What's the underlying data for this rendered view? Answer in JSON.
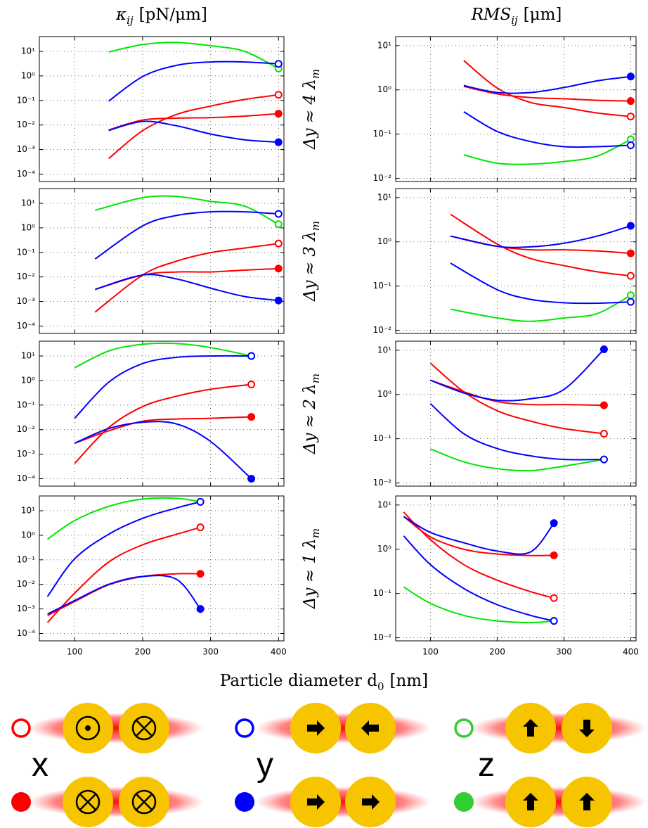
{
  "column_titles": [
    {
      "symbol": "κ",
      "subscript": "ij",
      "unit": "[pN/μm]"
    },
    {
      "symbol": "RMS",
      "subscript": "ij",
      "unit": "[μm]"
    }
  ],
  "row_labels": [
    {
      "text": "Δy ≈ 4 λ",
      "subscript": "m"
    },
    {
      "text": "Δy ≈ 3 λ",
      "subscript": "m"
    },
    {
      "text": "Δy ≈ 2 λ",
      "subscript": "m"
    },
    {
      "text": "Δy ≈ 1 λ",
      "subscript": "m"
    }
  ],
  "xlabel": {
    "text": "Particle diameter d",
    "subscript": "0",
    "unit": "[nm]"
  },
  "chart_data": [
    {
      "type": "line",
      "log_y": true,
      "grid": true,
      "x": [
        150,
        200,
        250,
        300,
        350,
        400
      ],
      "xlim": [
        48,
        408
      ],
      "xticks": [
        100,
        200,
        300,
        400
      ],
      "ylim": [
        5e-05,
        40
      ],
      "yticks": [
        {
          "value": 0.0001,
          "label": "10⁻⁴"
        },
        {
          "value": 0.001,
          "label": "10⁻³"
        },
        {
          "value": 0.01,
          "label": "10⁻²"
        },
        {
          "value": 0.1,
          "label": "10⁻¹"
        },
        {
          "value": 1,
          "label": "10⁰"
        },
        {
          "value": 10,
          "label": "10¹"
        }
      ],
      "series": [
        {
          "color": "#00e600",
          "marker": "open",
          "values": [
            9.4,
            19,
            23,
            17,
            10,
            2.0
          ]
        },
        {
          "color": "#ff0000",
          "marker": "open",
          "values": [
            0.00043,
            0.0059,
            0.027,
            0.059,
            0.11,
            0.17
          ]
        },
        {
          "color": "#ff0000",
          "marker": "filled",
          "values": [
            0.0063,
            0.016,
            0.019,
            0.02,
            0.023,
            0.029
          ]
        },
        {
          "color": "#0000ff",
          "marker": "open",
          "values": [
            0.094,
            0.94,
            2.7,
            3.7,
            3.7,
            3.1
          ]
        },
        {
          "color": "#0000ff",
          "marker": "filled",
          "values": [
            0.006,
            0.014,
            0.0093,
            0.0043,
            0.0025,
            0.002
          ]
        }
      ]
    },
    {
      "type": "line",
      "log_y": true,
      "grid": true,
      "x": [
        150,
        200,
        250,
        300,
        350,
        400
      ],
      "xlim": [
        48,
        408
      ],
      "xticks": [
        100,
        200,
        300,
        400
      ],
      "ylim": [
        0.0085,
        16
      ],
      "yticks": [
        {
          "value": 0.01,
          "label": "10⁻²"
        },
        {
          "value": 0.1,
          "label": "10⁻¹"
        },
        {
          "value": 1,
          "label": "10⁰"
        },
        {
          "value": 10,
          "label": "10¹"
        }
      ],
      "series": [
        {
          "color": "#00e600",
          "marker": "open",
          "values": [
            0.034,
            0.022,
            0.021,
            0.024,
            0.032,
            0.076
          ]
        },
        {
          "color": "#ff0000",
          "marker": "open",
          "values": [
            4.6,
            1.1,
            0.52,
            0.4,
            0.3,
            0.25
          ]
        },
        {
          "color": "#ff0000",
          "marker": "filled",
          "values": [
            1.2,
            0.81,
            0.67,
            0.63,
            0.58,
            0.56
          ]
        },
        {
          "color": "#0000ff",
          "marker": "open",
          "values": [
            0.32,
            0.115,
            0.068,
            0.052,
            0.052,
            0.056
          ]
        },
        {
          "color": "#0000ff",
          "marker": "filled",
          "values": [
            1.25,
            0.87,
            0.87,
            1.13,
            1.6,
            2.0
          ]
        }
      ]
    },
    {
      "type": "line",
      "log_y": true,
      "grid": true,
      "x": [
        130,
        200,
        250,
        300,
        350,
        400
      ],
      "xlim": [
        48,
        408
      ],
      "xticks": [
        100,
        200,
        300,
        400
      ],
      "ylim": [
        5e-05,
        40
      ],
      "yticks": [
        {
          "value": 0.0001,
          "label": "10⁻⁴"
        },
        {
          "value": 0.001,
          "label": "10⁻³"
        },
        {
          "value": 0.01,
          "label": "10⁻²"
        },
        {
          "value": 0.1,
          "label": "10⁻¹"
        },
        {
          "value": 1,
          "label": "10⁰"
        },
        {
          "value": 10,
          "label": "10¹"
        }
      ],
      "series": [
        {
          "color": "#00e600",
          "marker": "open",
          "values": [
            5.2,
            17,
            19,
            12,
            7.7,
            1.4
          ]
        },
        {
          "color": "#ff0000",
          "marker": "open",
          "values": [
            0.00037,
            0.012,
            0.044,
            0.098,
            0.15,
            0.23
          ]
        },
        {
          "color": "#ff0000",
          "marker": "filled",
          "values": [
            0.0031,
            0.012,
            0.016,
            0.016,
            0.019,
            0.022
          ]
        },
        {
          "color": "#0000ff",
          "marker": "open",
          "values": [
            0.054,
            1.2,
            3.2,
            4.5,
            4.5,
            3.7
          ]
        },
        {
          "color": "#0000ff",
          "marker": "filled",
          "values": [
            0.0031,
            0.012,
            0.0083,
            0.0035,
            0.0016,
            0.0011
          ]
        }
      ]
    },
    {
      "type": "line",
      "log_y": true,
      "grid": true,
      "x": [
        130,
        200,
        250,
        300,
        350,
        400
      ],
      "xlim": [
        48,
        408
      ],
      "xticks": [
        100,
        200,
        300,
        400
      ],
      "ylim": [
        0.0085,
        16
      ],
      "yticks": [
        {
          "value": 0.01,
          "label": "10⁻²"
        },
        {
          "value": 0.1,
          "label": "10⁻¹"
        },
        {
          "value": 1,
          "label": "10⁰"
        },
        {
          "value": 10,
          "label": "10¹"
        }
      ],
      "series": [
        {
          "color": "#00e600",
          "marker": "open",
          "values": [
            0.03,
            0.019,
            0.016,
            0.019,
            0.024,
            0.062
          ]
        },
        {
          "color": "#ff0000",
          "marker": "open",
          "values": [
            4.2,
            0.89,
            0.42,
            0.29,
            0.21,
            0.17
          ]
        },
        {
          "color": "#ff0000",
          "marker": "filled",
          "values": [
            1.35,
            0.79,
            0.66,
            0.66,
            0.62,
            0.55
          ]
        },
        {
          "color": "#0000ff",
          "marker": "open",
          "values": [
            0.33,
            0.083,
            0.05,
            0.042,
            0.041,
            0.044
          ]
        },
        {
          "color": "#0000ff",
          "marker": "filled",
          "values": [
            1.35,
            0.79,
            0.77,
            0.93,
            1.35,
            2.3
          ]
        }
      ]
    },
    {
      "type": "line",
      "log_y": true,
      "grid": true,
      "x": [
        100,
        150,
        200,
        250,
        300,
        360
      ],
      "xlim": [
        48,
        408
      ],
      "xticks": [
        100,
        200,
        300,
        400
      ],
      "ylim": [
        5e-05,
        40
      ],
      "yticks": [
        {
          "value": 0.0001,
          "label": "10⁻⁴"
        },
        {
          "value": 0.001,
          "label": "10⁻³"
        },
        {
          "value": 0.01,
          "label": "10⁻²"
        },
        {
          "value": 0.1,
          "label": "10⁻¹"
        },
        {
          "value": 1,
          "label": "10⁰"
        },
        {
          "value": 10,
          "label": "10¹"
        }
      ],
      "series": [
        {
          "color": "#00e600",
          "marker": "open",
          "values": [
            3.3,
            16,
            30,
            32,
            22,
            10
          ]
        },
        {
          "color": "#ff0000",
          "marker": "open",
          "values": [
            0.00042,
            0.012,
            0.087,
            0.23,
            0.44,
            0.69
          ]
        },
        {
          "color": "#ff0000",
          "marker": "filled",
          "values": [
            0.0028,
            0.0089,
            0.022,
            0.027,
            0.029,
            0.033
          ]
        },
        {
          "color": "#0000ff",
          "marker": "open",
          "values": [
            0.029,
            0.85,
            4.9,
            8.8,
            10,
            10
          ]
        },
        {
          "color": "#0000ff",
          "marker": "filled",
          "values": [
            0.0028,
            0.011,
            0.02,
            0.017,
            0.0033,
            0.0001
          ]
        }
      ]
    },
    {
      "type": "line",
      "log_y": true,
      "grid": true,
      "x": [
        100,
        150,
        200,
        250,
        300,
        360
      ],
      "xlim": [
        48,
        408
      ],
      "xticks": [
        100,
        200,
        300,
        400
      ],
      "ylim": [
        0.0085,
        16
      ],
      "yticks": [
        {
          "value": 0.01,
          "label": "10⁻²"
        },
        {
          "value": 0.1,
          "label": "10⁻¹"
        },
        {
          "value": 1,
          "label": "10⁰"
        },
        {
          "value": 10,
          "label": "10¹"
        }
      ],
      "series": [
        {
          "color": "#00e600",
          "marker": "open",
          "values": [
            0.059,
            0.03,
            0.021,
            0.019,
            0.024,
            0.034
          ]
        },
        {
          "color": "#ff0000",
          "marker": "open",
          "values": [
            5.1,
            1.15,
            0.43,
            0.25,
            0.17,
            0.13
          ]
        },
        {
          "color": "#ff0000",
          "marker": "filled",
          "values": [
            2.1,
            1.15,
            0.69,
            0.59,
            0.59,
            0.57
          ]
        },
        {
          "color": "#0000ff",
          "marker": "open",
          "values": [
            0.62,
            0.13,
            0.06,
            0.041,
            0.034,
            0.034
          ]
        },
        {
          "color": "#0000ff",
          "marker": "filled",
          "values": [
            2.1,
            1.08,
            0.74,
            0.8,
            1.3,
            10.5
          ]
        }
      ]
    },
    {
      "type": "line",
      "log_y": true,
      "grid": true,
      "x": [
        60,
        100,
        150,
        200,
        250,
        285
      ],
      "xlim": [
        48,
        408
      ],
      "xticks": [
        100,
        200,
        300,
        400
      ],
      "ylim": [
        5e-05,
        40
      ],
      "yticks": [
        {
          "value": 0.0001,
          "label": "10⁻⁴"
        },
        {
          "value": 0.001,
          "label": "10⁻³"
        },
        {
          "value": 0.01,
          "label": "10⁻²"
        },
        {
          "value": 0.1,
          "label": "10⁻¹"
        },
        {
          "value": 1,
          "label": "10⁰"
        },
        {
          "value": 10,
          "label": "10¹"
        }
      ],
      "series": [
        {
          "color": "#00e600",
          "marker": "open",
          "values": [
            0.69,
            4,
            15,
            30,
            32,
            23
          ]
        },
        {
          "color": "#ff0000",
          "marker": "open",
          "values": [
            0.00028,
            0.0044,
            0.081,
            0.41,
            1.1,
            2.1
          ]
        },
        {
          "color": "#ff0000",
          "marker": "filled",
          "values": [
            0.00054,
            0.002,
            0.0096,
            0.021,
            0.027,
            0.027
          ]
        },
        {
          "color": "#0000ff",
          "marker": "open",
          "values": [
            0.0032,
            0.11,
            1.1,
            4.9,
            13,
            23
          ]
        },
        {
          "color": "#0000ff",
          "marker": "filled",
          "values": [
            0.00062,
            0.0022,
            0.01,
            0.021,
            0.016,
            0.001
          ]
        }
      ]
    },
    {
      "type": "line",
      "log_y": true,
      "grid": true,
      "x": [
        60,
        100,
        150,
        200,
        250,
        285
      ],
      "xlim": [
        48,
        408
      ],
      "xticks": [
        100,
        200,
        300,
        400
      ],
      "ylim": [
        0.0085,
        16
      ],
      "yticks": [
        {
          "value": 0.01,
          "label": "10⁻²"
        },
        {
          "value": 0.1,
          "label": "10⁻¹"
        },
        {
          "value": 1,
          "label": "10⁰"
        },
        {
          "value": 10,
          "label": "10¹"
        }
      ],
      "series": [
        {
          "color": "#00e600",
          "marker": "open",
          "values": [
            0.14,
            0.06,
            0.032,
            0.024,
            0.022,
            0.024
          ]
        },
        {
          "color": "#ff0000",
          "marker": "open",
          "values": [
            6.9,
            1.65,
            0.45,
            0.2,
            0.11,
            0.079
          ]
        },
        {
          "color": "#ff0000",
          "marker": "filled",
          "values": [
            5.5,
            1.9,
            1.0,
            0.78,
            0.72,
            0.73
          ]
        },
        {
          "color": "#0000ff",
          "marker": "open",
          "values": [
            2.0,
            0.45,
            0.13,
            0.056,
            0.032,
            0.024
          ]
        },
        {
          "color": "#0000ff",
          "marker": "filled",
          "values": [
            5.5,
            2.4,
            1.4,
            0.91,
            0.87,
            3.9
          ]
        }
      ]
    }
  ],
  "legend": [
    {
      "label": "x",
      "color": "#ff0000"
    },
    {
      "label": "y",
      "color": "#0000ff"
    },
    {
      "label": "z",
      "color": "#33cc33"
    }
  ]
}
